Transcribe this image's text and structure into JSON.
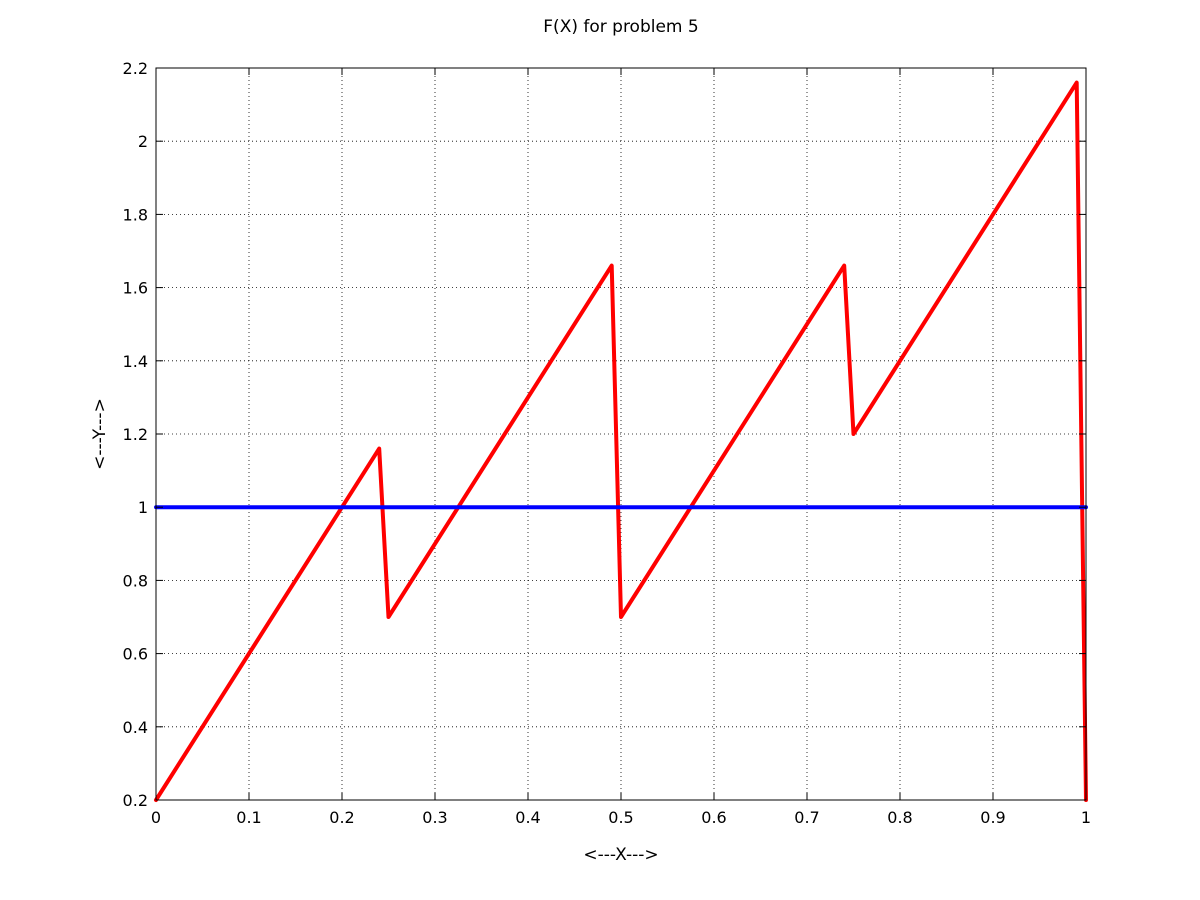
{
  "chart_data": {
    "type": "line",
    "title": "F(X) for problem 5",
    "xlabel": "<---X--->",
    "ylabel": "<---Y--->",
    "xlim": [
      0,
      1
    ],
    "ylim": [
      0.2,
      2.2
    ],
    "xticks": [
      0,
      0.1,
      0.2,
      0.3,
      0.4,
      0.5,
      0.6,
      0.7,
      0.8,
      0.9,
      1
    ],
    "xtick_labels": [
      "0",
      "0.1",
      "0.2",
      "0.3",
      "0.4",
      "0.5",
      "0.6",
      "0.7",
      "0.8",
      "0.9",
      "1"
    ],
    "yticks": [
      0.2,
      0.4,
      0.6,
      0.8,
      1,
      1.2,
      1.4,
      1.6,
      1.8,
      2,
      2.2
    ],
    "ytick_labels": [
      "0.2",
      "0.4",
      "0.6",
      "0.8",
      "1",
      "1.2",
      "1.4",
      "1.6",
      "1.8",
      "2",
      "2.2"
    ],
    "grid": true,
    "series": [
      {
        "color": "#ff0000",
        "x": [
          0,
          0.24,
          0.25,
          0.49,
          0.5,
          0.74,
          0.75,
          0.99,
          1.0
        ],
        "y": [
          0.2,
          1.16,
          0.7,
          1.66,
          0.7,
          1.66,
          1.2,
          2.16,
          0.2
        ]
      },
      {
        "color": "#0000ff",
        "x": [
          0,
          1
        ],
        "y": [
          1,
          1
        ]
      }
    ]
  }
}
